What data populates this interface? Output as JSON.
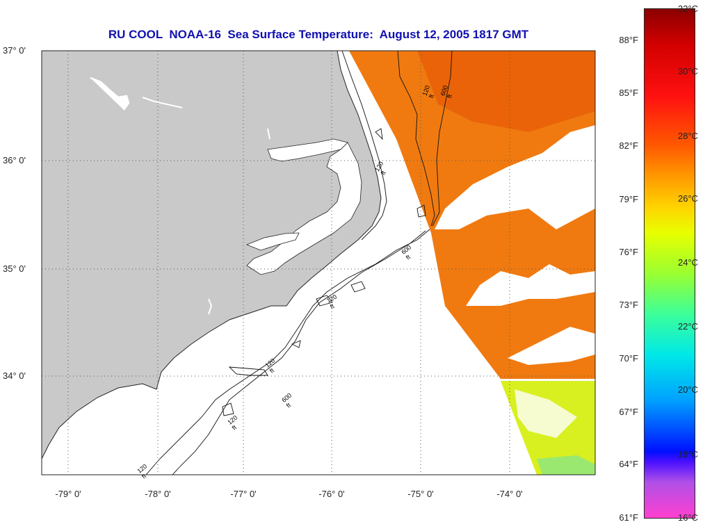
{
  "title": "RU COOL  NOAA-16  Sea Surface Temperature:  August 12, 2005 1817 GMT",
  "lat_labels": [
    "37° 0'",
    "36° 0'",
    "35° 0'",
    "34° 0'"
  ],
  "lon_labels": [
    "-79° 0'",
    "-78° 0'",
    "-77° 0'",
    "-76° 0'",
    "-75° 0'",
    "-74° 0'"
  ],
  "colorbar": {
    "fahrenheit": [
      "88°F",
      "85°F",
      "82°F",
      "79°F",
      "76°F",
      "73°F",
      "70°F",
      "67°F",
      "64°F",
      "61°F"
    ],
    "celsius": [
      "32°C",
      "30°C",
      "28°C",
      "26°C",
      "24°C",
      "22°C",
      "20°C",
      "18°C",
      "16°C"
    ]
  },
  "isobath_labels": [
    "120 ft",
    "600 ft",
    "120 ft",
    "600 ft",
    "120 ft",
    "120 ft",
    "600 ft",
    "120 ft",
    "120 ft"
  ],
  "colors": {
    "land": "#c9c9c9",
    "sst_warm": "#f07a10",
    "sst_cool": "#d8f020",
    "title": "#1010b0"
  }
}
